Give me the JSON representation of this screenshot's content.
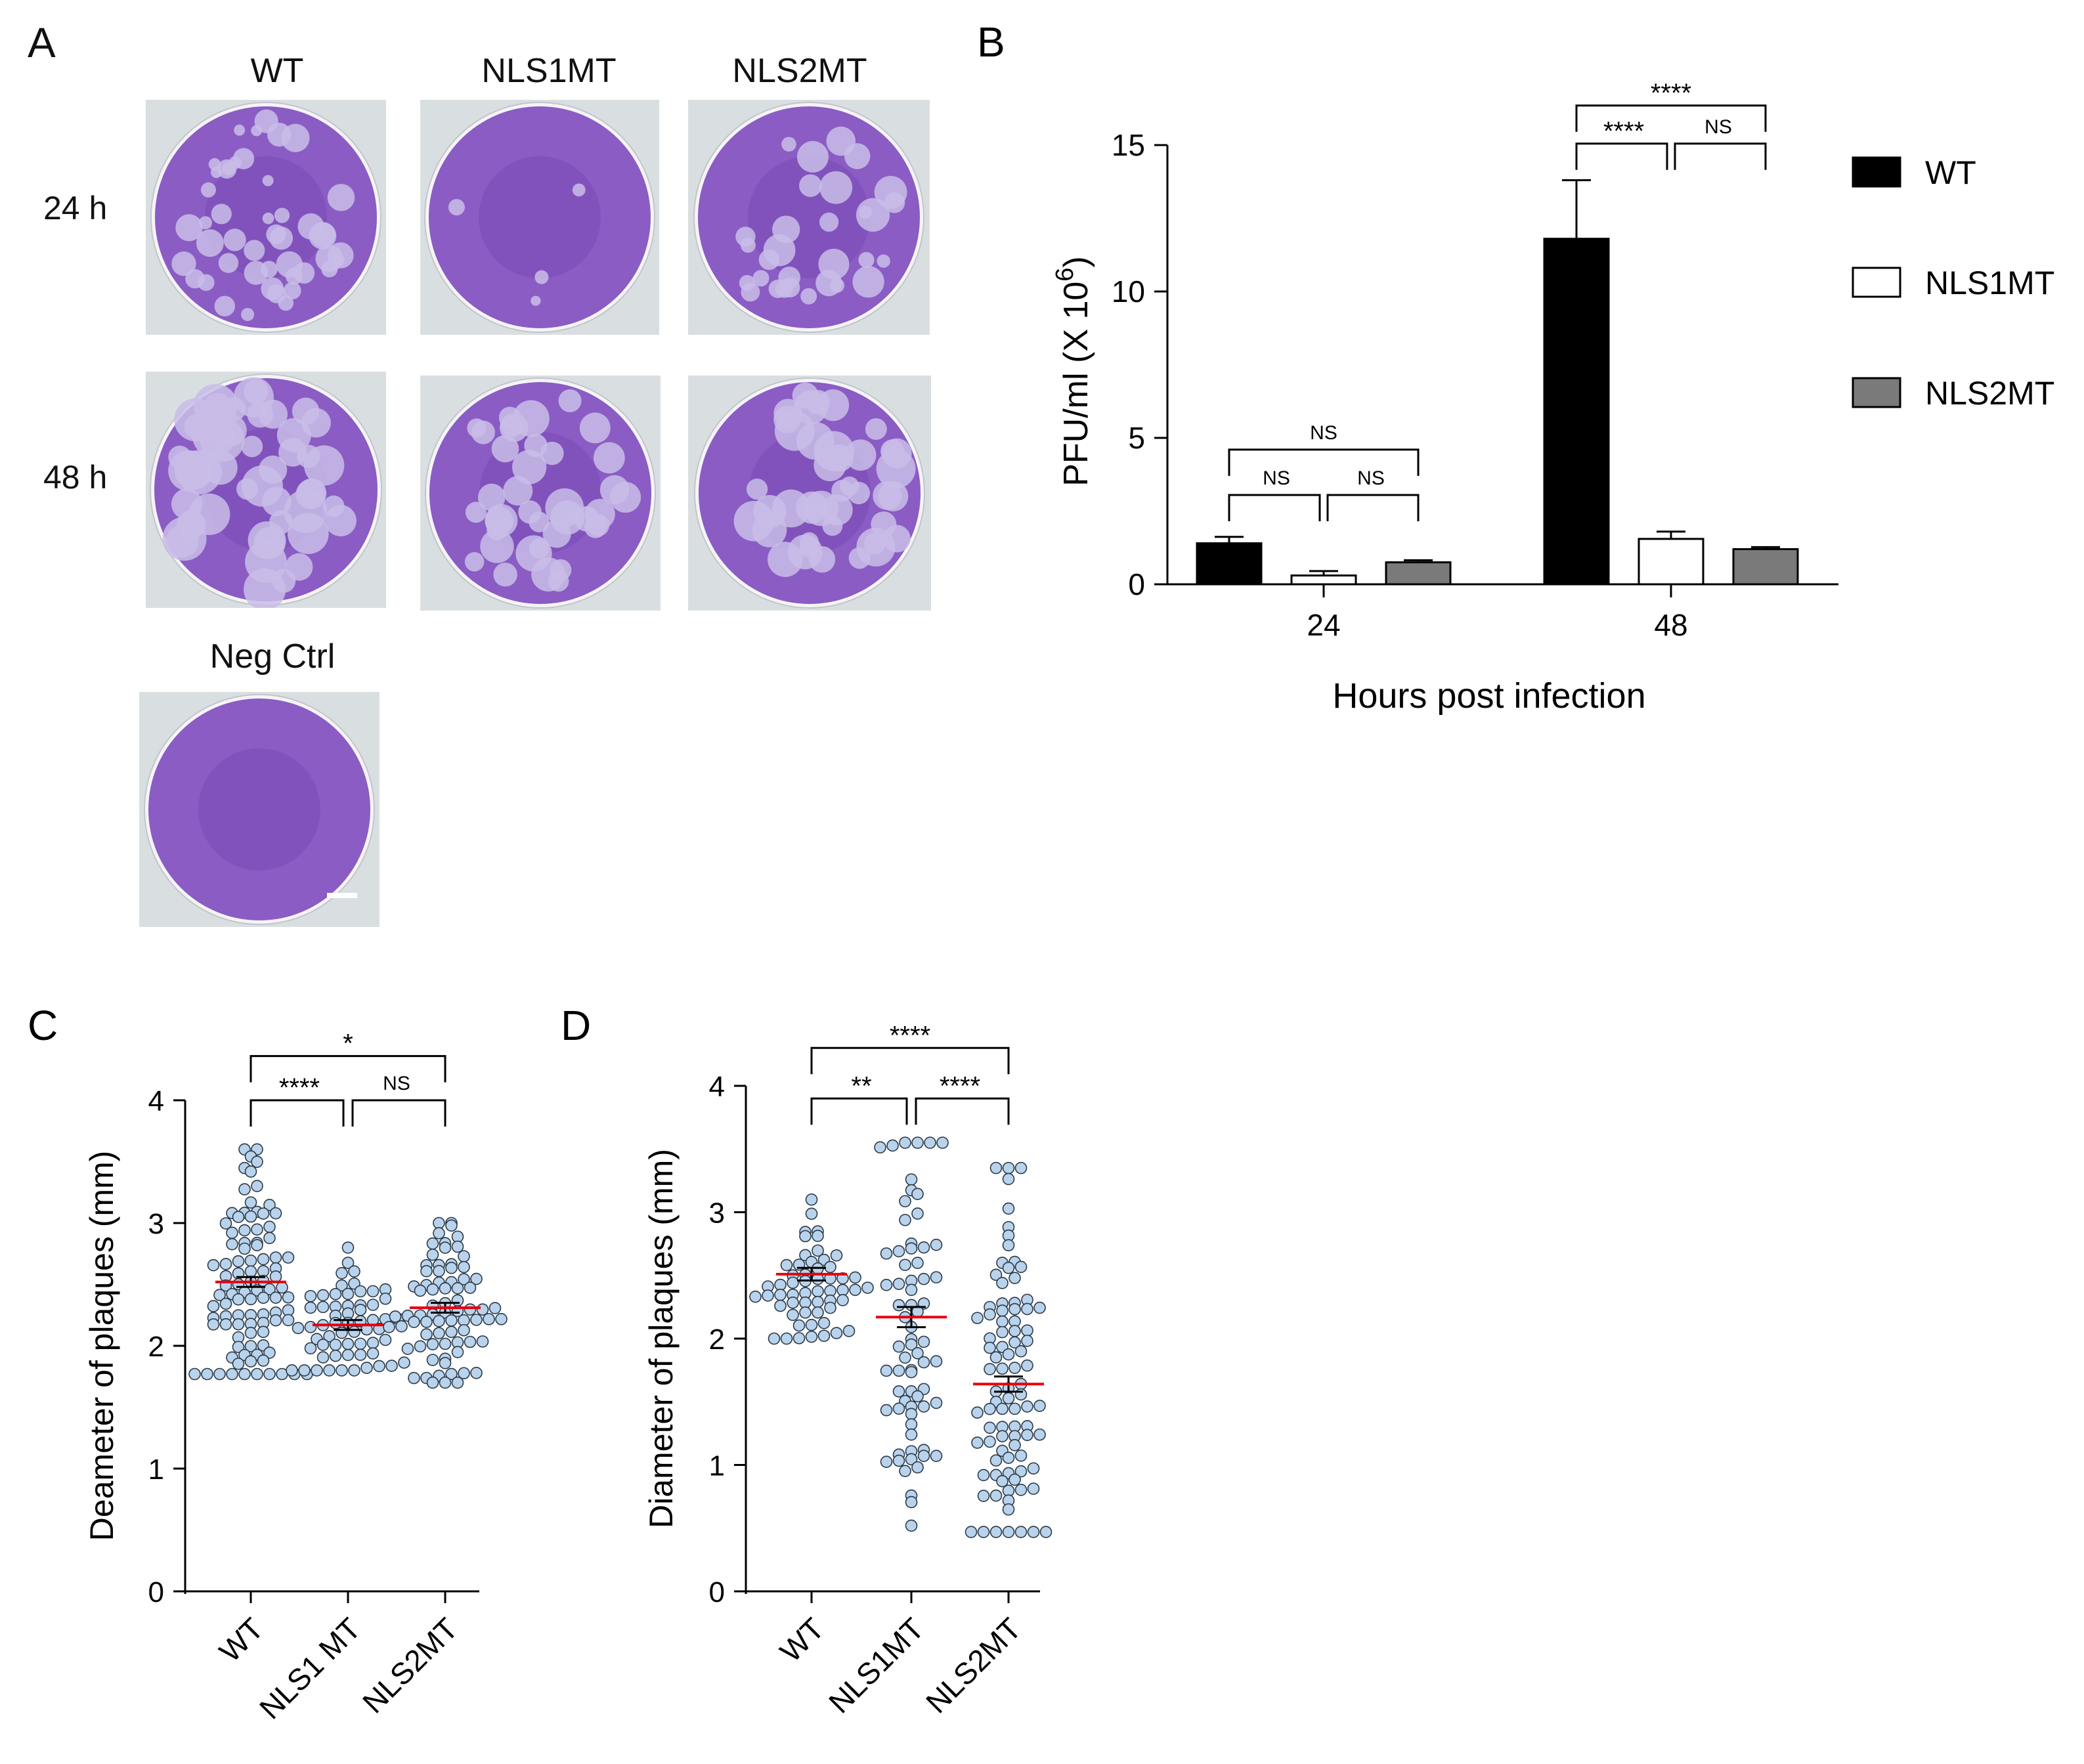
{
  "panels": {
    "a": {
      "letter": "A",
      "columns": [
        "WT",
        "NLS1MT",
        "NLS2MT"
      ],
      "rows": [
        "24 h",
        "48 h"
      ],
      "neg_ctrl": "Neg Ctrl",
      "plate_colors": {
        "stain": "#8a5cc4",
        "stain_dark": "#6f3fae",
        "plaque": "#c9bde8",
        "rim": "#f4f4f6"
      }
    },
    "b": {
      "letter": "B"
    },
    "c": {
      "letter": "C"
    },
    "d": {
      "letter": "D"
    }
  },
  "chart_data": [
    {
      "panel": "B",
      "type": "bar",
      "categories": [
        "24",
        "48"
      ],
      "xlabel": "Hours post infection",
      "ylabel": "PFU/ml (X 10⁶)",
      "ylabel_parts": {
        "main": "PFU/ml (X 10",
        "sup": "6",
        "close": ")"
      },
      "ylim": [
        0,
        15
      ],
      "yticks": [
        0,
        5,
        10,
        15
      ],
      "legend": {
        "position": "top-right"
      },
      "series": [
        {
          "name": "WT",
          "color": "#000000",
          "values": [
            1.4,
            11.8
          ],
          "errors": [
            0.22,
            2.0
          ]
        },
        {
          "name": "NLS1MT",
          "color": "#ffffff",
          "values": [
            0.3,
            1.55
          ],
          "errors": [
            0.15,
            0.25
          ]
        },
        {
          "name": "NLS2MT",
          "color": "#7a7a7a",
          "values": [
            0.75,
            1.2
          ],
          "errors": [
            0.07,
            0.07
          ]
        }
      ],
      "significance": [
        {
          "group": 0,
          "from": 0,
          "to": 1,
          "label": "NS",
          "y": 3.05
        },
        {
          "group": 0,
          "from": 1,
          "to": 2,
          "label": "NS",
          "y": 3.05
        },
        {
          "group": 0,
          "from": 0,
          "to": 2,
          "label": "NS",
          "y": 4.6
        },
        {
          "group": 1,
          "from": 0,
          "to": 1,
          "label": "****",
          "y": 15.05
        },
        {
          "group": 1,
          "from": 1,
          "to": 2,
          "label": "NS",
          "y": 15.05
        },
        {
          "group": 1,
          "from": 0,
          "to": 2,
          "label": "****",
          "y": 16.35
        }
      ]
    },
    {
      "panel": "C",
      "type": "scatter",
      "categories": [
        "WT",
        "NLS1 MT",
        "NLS2MT"
      ],
      "ylabel": "Deameter of plaques (mm)",
      "ylim": [
        0,
        4
      ],
      "yticks": [
        0,
        1,
        2,
        3,
        4
      ],
      "point_color": "#b9d3ec",
      "mean_color": "#e8000b",
      "groups": [
        {
          "mean": 2.52,
          "sem": 0.04,
          "n": 95,
          "min": 1.77,
          "max": 3.6
        },
        {
          "mean": 2.17,
          "sem": 0.04,
          "n": 60,
          "min": 1.8,
          "max": 2.8
        },
        {
          "mean": 2.31,
          "sem": 0.04,
          "n": 75,
          "min": 1.7,
          "max": 3.0
        }
      ],
      "significance": [
        {
          "from": 0,
          "to": 1,
          "label": "****",
          "y": 4.0
        },
        {
          "from": 1,
          "to": 2,
          "label": "NS",
          "y": 4.0
        },
        {
          "from": 0,
          "to": 2,
          "label": "*",
          "y": 4.36
        }
      ]
    },
    {
      "panel": "D",
      "type": "scatter",
      "categories": [
        "WT",
        "NLS1MT",
        "NLS2MT"
      ],
      "ylabel": "Diameter of plaques (mm)",
      "ylim": [
        0,
        4
      ],
      "yticks": [
        0,
        1,
        2,
        3,
        4
      ],
      "point_color": "#b9d3ec",
      "mean_color": "#e8000b",
      "groups": [
        {
          "mean": 2.51,
          "sem": 0.05,
          "n": 55,
          "min": 2.0,
          "max": 3.1
        },
        {
          "mean": 2.17,
          "sem": 0.08,
          "n": 70,
          "min": 0.52,
          "max": 3.55
        },
        {
          "mean": 1.64,
          "sem": 0.06,
          "n": 90,
          "min": 0.47,
          "max": 3.35
        }
      ],
      "significance": [
        {
          "from": 0,
          "to": 1,
          "label": "**",
          "y": 3.9
        },
        {
          "from": 1,
          "to": 2,
          "label": "****",
          "y": 3.9
        },
        {
          "from": 0,
          "to": 2,
          "label": "****",
          "y": 4.3
        }
      ]
    }
  ]
}
